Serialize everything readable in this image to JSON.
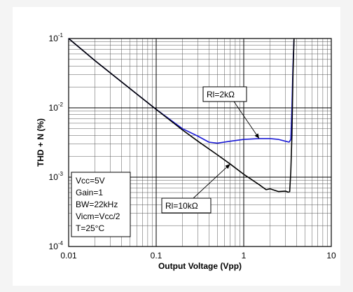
{
  "chart_data": {
    "type": "line",
    "title": "",
    "xlabel": "Output Voltage (Vpp)",
    "ylabel": "THD + N (%)",
    "x_scale": "log",
    "y_scale": "log",
    "xlim": [
      0.01,
      10
    ],
    "ylim": [
      0.0001,
      0.1
    ],
    "grid": true,
    "x_ticks": [
      {
        "value": 0.01,
        "label": "0.01"
      },
      {
        "value": 0.1,
        "label": "0.1"
      },
      {
        "value": 1,
        "label": "1"
      },
      {
        "value": 10,
        "label": "10"
      }
    ],
    "y_ticks": [
      {
        "value": 0.1,
        "base": "10",
        "exp": "-1"
      },
      {
        "value": 0.01,
        "base": "10",
        "exp": "-2"
      },
      {
        "value": 0.001,
        "base": "10",
        "exp": "-3"
      },
      {
        "value": 0.0001,
        "base": "10",
        "exp": "-4"
      }
    ],
    "series": [
      {
        "name": "Rl=10kΩ",
        "color": "#000000",
        "points": [
          [
            0.01,
            0.1
          ],
          [
            0.02,
            0.048
          ],
          [
            0.05,
            0.019
          ],
          [
            0.1,
            0.0095
          ],
          [
            0.2,
            0.0048
          ],
          [
            0.3,
            0.0033
          ],
          [
            0.5,
            0.0021
          ],
          [
            0.7,
            0.00155
          ],
          [
            1,
            0.0011
          ],
          [
            1.5,
            0.00078
          ],
          [
            1.8,
            0.00066
          ],
          [
            2,
            0.00068
          ],
          [
            2.5,
            0.00062
          ],
          [
            3,
            0.00063
          ],
          [
            3.2,
            0.00061
          ],
          [
            3.35,
            0.00062
          ],
          [
            3.45,
            0.0012
          ],
          [
            3.55,
            0.004
          ],
          [
            3.65,
            0.03
          ],
          [
            3.75,
            0.1
          ]
        ]
      },
      {
        "name": "Rl=2kΩ",
        "color": "#1a1ad6",
        "points": [
          [
            0.01,
            0.1
          ],
          [
            0.02,
            0.048
          ],
          [
            0.05,
            0.019
          ],
          [
            0.1,
            0.0095
          ],
          [
            0.2,
            0.005
          ],
          [
            0.3,
            0.0039
          ],
          [
            0.4,
            0.0032
          ],
          [
            0.5,
            0.0031
          ],
          [
            0.7,
            0.0033
          ],
          [
            1,
            0.0035
          ],
          [
            1.5,
            0.0036
          ],
          [
            2,
            0.0036
          ],
          [
            2.5,
            0.0035
          ],
          [
            3,
            0.0033
          ],
          [
            3.3,
            0.0032
          ],
          [
            3.45,
            0.0035
          ],
          [
            3.55,
            0.01
          ],
          [
            3.65,
            0.04
          ],
          [
            3.75,
            0.1
          ]
        ]
      }
    ],
    "annotations": [
      {
        "text": "Rl=2kΩ",
        "series": "Rl=2kΩ",
        "x": 1.5,
        "y": 0.0036
      },
      {
        "text": "Rl=10kΩ",
        "series": "Rl=10kΩ",
        "x": 0.7,
        "y": 0.00155
      }
    ],
    "conditions": [
      "Vcc=5V",
      "Gain=1",
      "BW=22kHz",
      "Vicm=Vcc/2",
      "T=25°C"
    ]
  }
}
